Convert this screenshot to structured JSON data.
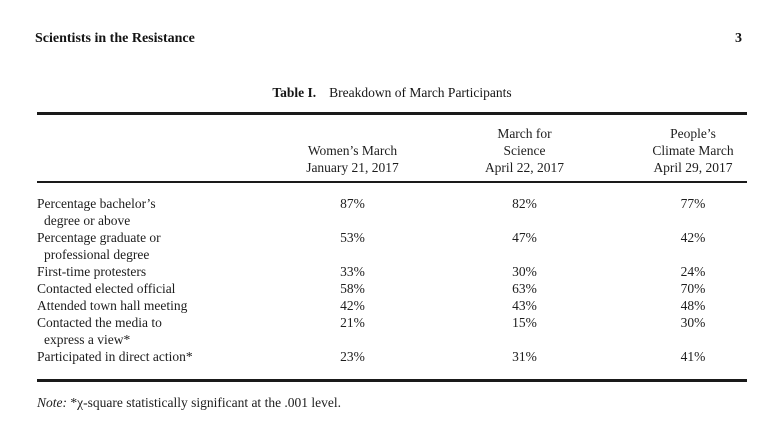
{
  "page": {
    "running_head": "Scientists in the Resistance",
    "page_number": "3"
  },
  "table": {
    "title_label": "Table I.",
    "title_text": "Breakdown of March Participants",
    "columns": [
      {
        "lines": [
          "Women’s March",
          "January 21, 2017"
        ]
      },
      {
        "lines": [
          "March for",
          "Science",
          "April 22, 2017"
        ]
      },
      {
        "lines": [
          "People’s",
          "Climate March",
          "April 29, 2017"
        ]
      }
    ],
    "rows": [
      {
        "label": [
          "Percentage bachelor’s",
          "degree or above"
        ],
        "values": [
          "87%",
          "82%",
          "77%"
        ]
      },
      {
        "label": [
          "Percentage graduate or",
          "professional degree"
        ],
        "values": [
          "53%",
          "47%",
          "42%"
        ]
      },
      {
        "label": [
          "First-time protesters"
        ],
        "values": [
          "33%",
          "30%",
          "24%"
        ]
      },
      {
        "label": [
          "Contacted elected official"
        ],
        "values": [
          "58%",
          "63%",
          "70%"
        ]
      },
      {
        "label": [
          "Attended town hall meeting"
        ],
        "values": [
          "42%",
          "43%",
          "48%"
        ]
      },
      {
        "label": [
          "Contacted the media to",
          "express a view*"
        ],
        "values": [
          "21%",
          "15%",
          "30%"
        ]
      },
      {
        "label": [
          "Participated in direct action*"
        ],
        "values": [
          "23%",
          "31%",
          "41%"
        ]
      }
    ]
  },
  "note": {
    "label": "Note:",
    "text": " *χ-square statistically significant at the .001 level."
  }
}
